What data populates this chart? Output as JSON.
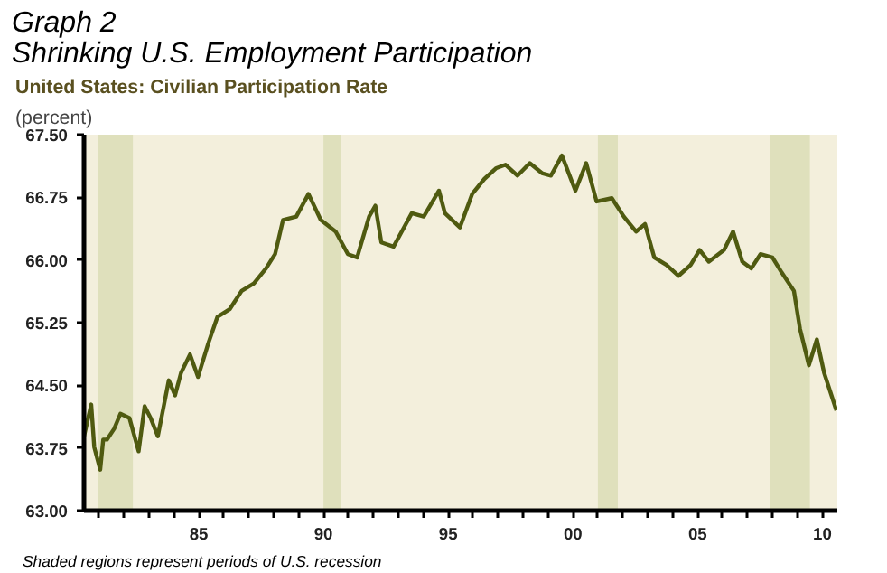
{
  "chart_data": {
    "type": "line",
    "title": "Graph 2\nShrinking U.S. Employment Participation",
    "subtitle": "United States: Civilian Participation Rate",
    "ylabel": "(percent)",
    "annotations": [
      "Shaded regions represent periods of U.S. recession"
    ],
    "x": [
      1980.4,
      1980.69,
      1980.81,
      1981.05,
      1981.17,
      1981.32,
      1981.61,
      1981.86,
      1982.22,
      1982.59,
      1982.83,
      1983.07,
      1983.36,
      1983.8,
      1984.05,
      1984.29,
      1984.65,
      1984.97,
      1985.38,
      1985.75,
      1986.24,
      1986.72,
      1987.21,
      1987.7,
      1988.06,
      1988.38,
      1988.91,
      1989.4,
      1989.89,
      1990.49,
      1990.98,
      1991.35,
      1991.83,
      1992.08,
      1992.32,
      1992.81,
      1993.54,
      1994.02,
      1994.63,
      1994.87,
      1995.47,
      1995.96,
      1996.45,
      1996.93,
      1997.3,
      1997.78,
      1998.27,
      1998.76,
      1999.12,
      1999.56,
      2000.1,
      2000.53,
      2000.95,
      2001.56,
      2002.04,
      2002.53,
      2002.89,
      2003.26,
      2003.75,
      2004.23,
      2004.72,
      2005.08,
      2005.45,
      2006.06,
      2006.42,
      2006.79,
      2007.15,
      2007.52,
      2008.0,
      2008.37,
      2008.86,
      2009.1,
      2009.46,
      2009.78,
      2010.07,
      2010.56
    ],
    "series": [
      {
        "color": "#4f5a10",
        "values": [
          63.89,
          64.27,
          63.76,
          63.49,
          63.85,
          63.85,
          63.98,
          64.16,
          64.11,
          63.71,
          64.25,
          64.11,
          63.89,
          64.56,
          64.38,
          64.65,
          64.87,
          64.6,
          65.0,
          65.32,
          65.41,
          65.63,
          65.72,
          65.9,
          66.07,
          66.48,
          66.52,
          66.79,
          66.48,
          66.34,
          66.07,
          66.03,
          66.52,
          66.65,
          66.21,
          66.16,
          66.56,
          66.52,
          66.83,
          66.56,
          66.39,
          66.79,
          66.97,
          67.1,
          67.14,
          67.01,
          67.16,
          67.04,
          67.01,
          67.25,
          66.83,
          67.16,
          66.7,
          66.74,
          66.52,
          66.34,
          66.43,
          66.03,
          65.94,
          65.81,
          65.94,
          66.12,
          65.98,
          66.12,
          66.34,
          65.98,
          65.9,
          66.07,
          66.03,
          65.85,
          65.63,
          65.18,
          64.74,
          65.05,
          64.65,
          64.2
        ]
      }
    ],
    "bands": [
      {
        "axis": "x",
        "from": 1980.97,
        "to": 1982.36,
        "color": "#dfe0bc"
      },
      {
        "axis": "x",
        "from": 1990.0,
        "to": 1990.7,
        "color": "#dfe0bc"
      },
      {
        "axis": "x",
        "from": 2001.0,
        "to": 2001.8,
        "color": "#dfe0bc"
      },
      {
        "axis": "x",
        "from": 2007.9,
        "to": 2009.5,
        "color": "#dfe0bc"
      }
    ],
    "xlim": [
      1980.4,
      2010.6
    ],
    "xticks": [
      {
        "value": 1981,
        "label": null
      },
      {
        "value": 1982,
        "label": null
      },
      {
        "value": 1983,
        "label": null
      },
      {
        "value": 1984,
        "label": null
      },
      {
        "value": 1985,
        "label": "85"
      },
      {
        "value": 1986,
        "label": null
      },
      {
        "value": 1987,
        "label": null
      },
      {
        "value": 1988,
        "label": null
      },
      {
        "value": 1989,
        "label": null
      },
      {
        "value": 1990,
        "label": "90"
      },
      {
        "value": 1991,
        "label": null
      },
      {
        "value": 1992,
        "label": null
      },
      {
        "value": 1993,
        "label": null
      },
      {
        "value": 1994,
        "label": null
      },
      {
        "value": 1995,
        "label": "95"
      },
      {
        "value": 1996,
        "label": null
      },
      {
        "value": 1997,
        "label": null
      },
      {
        "value": 1998,
        "label": null
      },
      {
        "value": 1999,
        "label": null
      },
      {
        "value": 2000,
        "label": "00"
      },
      {
        "value": 2001,
        "label": null
      },
      {
        "value": 2002,
        "label": null
      },
      {
        "value": 2003,
        "label": null
      },
      {
        "value": 2004,
        "label": null
      },
      {
        "value": 2005,
        "label": "05"
      },
      {
        "value": 2006,
        "label": null
      },
      {
        "value": 2007,
        "label": null
      },
      {
        "value": 2008,
        "label": null
      },
      {
        "value": 2009,
        "label": null
      },
      {
        "value": 2010,
        "label": "10"
      }
    ],
    "ylim": [
      63.0,
      67.5
    ],
    "yticks": [
      {
        "value": 63.0,
        "label": "63.00"
      },
      {
        "value": 63.75,
        "label": "63.75"
      },
      {
        "value": 64.5,
        "label": "64.50"
      },
      {
        "value": 65.25,
        "label": "65.25"
      },
      {
        "value": 66.0,
        "label": "66.00"
      },
      {
        "value": 66.75,
        "label": "66.75"
      },
      {
        "value": 67.5,
        "label": "67.50"
      }
    ],
    "grid": false,
    "marker": "none",
    "line_style": "solid"
  }
}
